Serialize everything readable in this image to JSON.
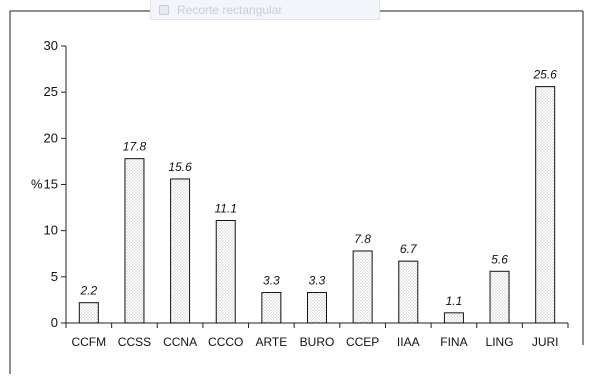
{
  "overlay": {
    "label": "Recorte rectangular"
  },
  "colors": {
    "bar_stroke": "#111111",
    "bar_fill": "#e9e9e9",
    "frame": "#222222",
    "text": "#111111"
  },
  "chart_data": {
    "type": "bar",
    "categories": [
      "CCFM",
      "CCSS",
      "CCNA",
      "CCCO",
      "ARTE",
      "BURO",
      "CCEP",
      "IIAA",
      "FINA",
      "LING",
      "JURI"
    ],
    "values": [
      2.2,
      17.8,
      15.6,
      11.1,
      3.3,
      3.3,
      7.8,
      6.7,
      1.1,
      5.6,
      25.6
    ],
    "value_labels": [
      "2.2",
      "17.8",
      "15.6",
      "11.1",
      "3.3",
      "3.3",
      "7.8",
      "6.7",
      "1.1",
      "5.6",
      "25.6"
    ],
    "title": "",
    "xlabel": "",
    "ylabel": "%",
    "ylim": [
      0,
      30
    ],
    "yticks": [
      0,
      5,
      10,
      15,
      20,
      25,
      30
    ],
    "grid": false,
    "legend": "none"
  }
}
